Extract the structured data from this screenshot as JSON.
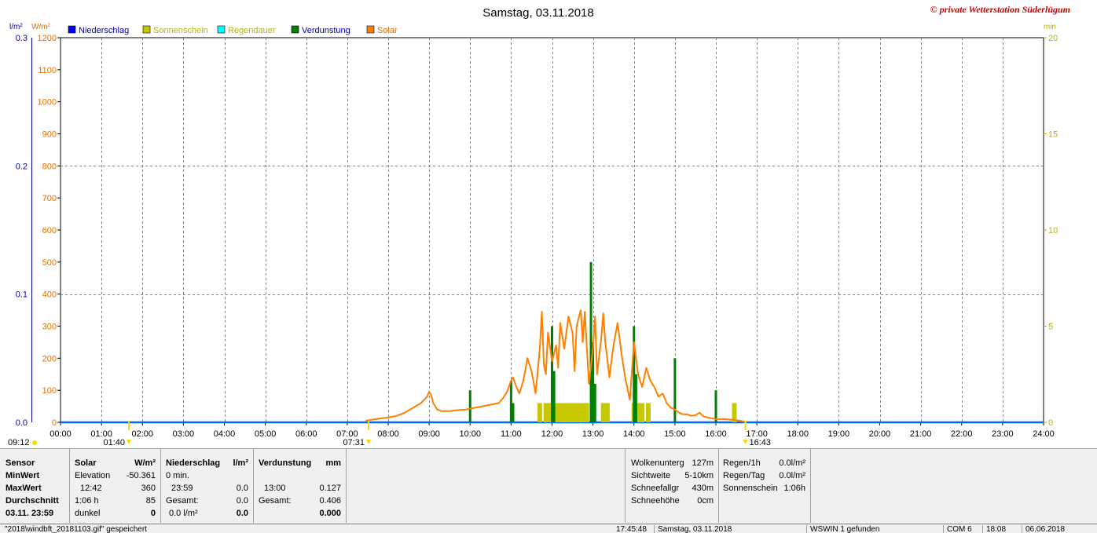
{
  "chart_data": {
    "type": "line",
    "title": "Samstag, 03.11.2018",
    "watermark": "© private Wetterstation Süderlügum",
    "units": {
      "left_outer": "l/m²",
      "left_inner": "W/m²",
      "right": "min"
    },
    "legend": [
      {
        "name": "Niederschlag",
        "color": "#0000ff",
        "text_color": "#0000aa"
      },
      {
        "name": "Sonnenschein",
        "color": "#c8c800",
        "text_color": "#b4b400"
      },
      {
        "name": "Regendauer",
        "color": "#00ffff",
        "text_color": "#b4b400"
      },
      {
        "name": "Verdunstung",
        "color": "#008000",
        "text_color": "#0000aa"
      },
      {
        "name": "Solar",
        "color": "#ff8000",
        "text_color": "#e07000"
      }
    ],
    "x_ticks": [
      "00:00",
      "01:00",
      "02:00",
      "03:00",
      "04:00",
      "05:00",
      "06:00",
      "07:00",
      "08:00",
      "09:00",
      "10:00",
      "11:00",
      "12:00",
      "13:00",
      "14:00",
      "15:00",
      "16:00",
      "17:00",
      "18:00",
      "19:00",
      "20:00",
      "21:00",
      "22:00",
      "23:00",
      "24:00"
    ],
    "xlim": [
      0,
      24
    ],
    "y_solar": {
      "ylim": [
        0,
        1200
      ],
      "ticks": [
        "0",
        "100",
        "200",
        "300",
        "400",
        "500",
        "600",
        "700",
        "800",
        "900",
        "1000",
        "1100",
        "1200"
      ],
      "color": "#e07000"
    },
    "y_precip": {
      "ylim": [
        0,
        0.3
      ],
      "ticks": [
        "0.0",
        "0.1",
        "0.2",
        "0.3"
      ],
      "color": "#0000aa"
    },
    "y_minutes": {
      "ylim": [
        0,
        20
      ],
      "ticks": [
        "0",
        "5",
        "10",
        "15",
        "20"
      ],
      "color": "#b4b400"
    },
    "series": [
      {
        "name": "Solar",
        "color": "#ff8000",
        "x": [
          7.45,
          7.6,
          7.8,
          8.0,
          8.2,
          8.4,
          8.6,
          8.8,
          8.95,
          9.0,
          9.05,
          9.1,
          9.2,
          9.3,
          9.5,
          9.7,
          9.9,
          10.1,
          10.3,
          10.5,
          10.7,
          10.8,
          10.9,
          11.0,
          11.05,
          11.1,
          11.2,
          11.3,
          11.4,
          11.5,
          11.6,
          11.7,
          11.75,
          11.8,
          11.85,
          11.9,
          12.0,
          12.1,
          12.15,
          12.2,
          12.3,
          12.4,
          12.5,
          12.55,
          12.6,
          12.7,
          12.75,
          12.8,
          12.9,
          13.0,
          13.05,
          13.1,
          13.2,
          13.25,
          13.3,
          13.4,
          13.5,
          13.6,
          13.7,
          13.8,
          13.9,
          14.0,
          14.1,
          14.2,
          14.3,
          14.4,
          14.5,
          14.6,
          14.7,
          14.8,
          14.9,
          15.0,
          15.1,
          15.2,
          15.3,
          15.4,
          15.5,
          15.6,
          15.7,
          15.8,
          16.0,
          16.2,
          16.4,
          16.6,
          16.75
        ],
        "values": [
          5,
          8,
          12,
          15,
          20,
          30,
          45,
          60,
          80,
          95,
          85,
          60,
          40,
          35,
          35,
          38,
          40,
          45,
          50,
          55,
          60,
          75,
          95,
          130,
          140,
          120,
          90,
          130,
          200,
          160,
          90,
          230,
          345,
          180,
          150,
          280,
          190,
          240,
          170,
          310,
          230,
          330,
          280,
          160,
          300,
          350,
          250,
          345,
          120,
          230,
          330,
          150,
          260,
          340,
          250,
          140,
          240,
          310,
          210,
          130,
          70,
          250,
          150,
          110,
          170,
          130,
          110,
          80,
          90,
          60,
          45,
          40,
          30,
          25,
          25,
          20,
          22,
          30,
          18,
          15,
          10,
          10,
          8,
          5,
          0
        ]
      },
      {
        "name": "Verdunstung",
        "color": "#008000",
        "x": [
          10.0,
          11.0,
          11.05,
          12.0,
          12.05,
          12.95,
          13.0,
          13.05,
          14.0,
          14.05,
          15.0,
          16.0
        ],
        "values": [
          100,
          130,
          60,
          300,
          160,
          500,
          250,
          120,
          300,
          150,
          200,
          100
        ]
      },
      {
        "name": "Sonnenschein",
        "color": "#c8c800",
        "x": [
          11.7,
          11.85,
          11.95,
          12.05,
          12.15,
          12.2,
          12.3,
          12.4,
          12.5,
          12.6,
          12.7,
          12.75,
          12.85,
          13.25,
          13.35,
          14.0,
          14.1,
          14.2,
          14.35,
          16.45
        ],
        "values": [
          1,
          1,
          1,
          1,
          1,
          1,
          1,
          1,
          1,
          1,
          1,
          1,
          1,
          1,
          1,
          1,
          1,
          1,
          1,
          1
        ]
      }
    ],
    "sun_markers": [
      {
        "label": "09:12",
        "position": "left-edge"
      },
      {
        "label": "01:40",
        "time": 1.67
      },
      {
        "label": "07:31",
        "time": 7.52
      },
      {
        "label": "16:43",
        "time": 16.72
      }
    ]
  },
  "panel": {
    "col_sensor": {
      "header": "Sensor",
      "r1": "MinWert",
      "r2": "MaxWert",
      "r3": "Durchschnitt",
      "r4": "03.11.  23:59"
    },
    "col_solar": {
      "header": "Solar",
      "unit": "W/m²",
      "r1_l": "Elevation",
      "r1_r": "-50.361",
      "r2_l": "12:42",
      "r2_r": "360",
      "r3_l": "1:06 h",
      "r3_r": "85",
      "r4_l": "dunkel",
      "r4_r": "0"
    },
    "col_precip": {
      "header": "Niederschlag",
      "unit": "l/m²",
      "r1_l": "0 min.",
      "r2_l": "23:59",
      "r2_r": "0.0",
      "r3_l": "Gesamt:",
      "r3_r": "0.0",
      "r4_l": "0.0 l/m²",
      "r4_r": "0.0"
    },
    "col_evap": {
      "header": "Verdunstung",
      "unit": "mm",
      "r2_l": "13:00",
      "r2_r": "0.127",
      "r3_l": "Gesamt:",
      "r3_r": "0.406",
      "r4_r": "0.000"
    },
    "col_cloud": {
      "r1_l": "Wolkenunterg",
      "r1_r": "127m",
      "r2_l": "Sichtweite",
      "r2_r": "5-10km",
      "r3_l": "Schneefallgr",
      "r3_r": "430m",
      "r4_l": "Schneehöhe",
      "r4_r": "0cm"
    },
    "col_rain": {
      "r1_l": "Regen/1h",
      "r1_r": "0.0l/m²",
      "r2_l": "Regen/Tag",
      "r2_r": "0.0l/m²",
      "r3_l": "Sonnenschein",
      "r3_r": "1:06h"
    }
  },
  "status_bar": {
    "file": "\"2018\\windbft_20181103.gif\" gespeichert",
    "time": "17:45:48",
    "date": "Samstag, 03.11.2018",
    "program": "WSWIN 1 gefunden",
    "port": "COM 6",
    "clock": "18:08",
    "today": "06.06.2018"
  }
}
